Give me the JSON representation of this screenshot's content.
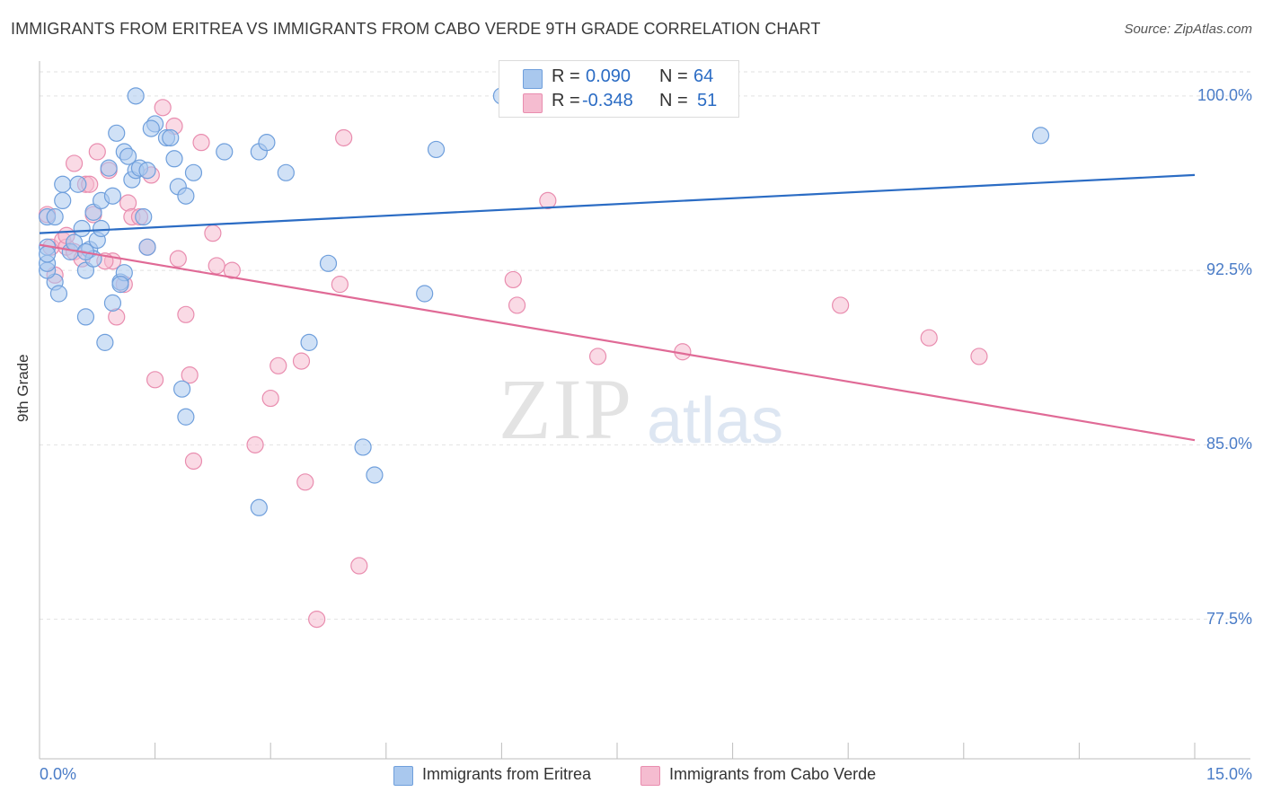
{
  "title": "IMMIGRANTS FROM ERITREA VS IMMIGRANTS FROM CABO VERDE 9TH GRADE CORRELATION CHART",
  "source": "Source: ZipAtlas.com",
  "watermark": {
    "zip": "ZIP",
    "atlas": "atlas"
  },
  "legend": {
    "r_label": "R =",
    "n_label": "N =",
    "series": [
      {
        "r": "0.090",
        "n": "64"
      },
      {
        "r": "-0.348",
        "n": "51"
      }
    ]
  },
  "bottom_legend": [
    "Immigrants from Eritrea",
    "Immigrants from Cabo Verde"
  ],
  "colors": {
    "blue_fill": "#a9c8ee",
    "blue_stroke": "#6f9fdc",
    "blue_line": "#2b6cc4",
    "pink_fill": "#f5bcd0",
    "pink_stroke": "#e98daf",
    "pink_line": "#e06a96",
    "tick_text": "#4a7cc7"
  },
  "chart_data": {
    "type": "scatter",
    "ylabel": "9th Grade",
    "xlim": [
      0.0,
      15.0
    ],
    "ylim": [
      71.5,
      101.5
    ],
    "x_tick_labels": [
      "0.0%",
      "15.0%"
    ],
    "y_ticks": [
      100.0,
      92.5,
      85.0,
      77.5
    ],
    "y_tick_labels": [
      "100.0%",
      "92.5%",
      "85.0%",
      "77.5%"
    ],
    "grid": true,
    "series": [
      {
        "name": "Immigrants from Eritrea",
        "trend": [
          [
            0.0,
            94.1
          ],
          [
            15.0,
            96.6
          ]
        ],
        "points": [
          [
            0.1,
            94.8
          ],
          [
            0.2,
            94.8
          ],
          [
            0.1,
            93.5
          ],
          [
            0.3,
            95.5
          ],
          [
            0.3,
            96.2
          ],
          [
            0.2,
            92.0
          ],
          [
            0.1,
            92.5
          ],
          [
            0.1,
            92.8
          ],
          [
            0.25,
            91.5
          ],
          [
            0.4,
            93.3
          ],
          [
            0.45,
            93.7
          ],
          [
            0.5,
            96.2
          ],
          [
            0.55,
            94.3
          ],
          [
            0.6,
            92.5
          ],
          [
            0.6,
            90.5
          ],
          [
            0.65,
            93.4
          ],
          [
            0.7,
            95.0
          ],
          [
            0.7,
            93.0
          ],
          [
            0.75,
            93.8
          ],
          [
            0.8,
            95.5
          ],
          [
            0.8,
            94.3
          ],
          [
            0.85,
            89.4
          ],
          [
            0.9,
            96.9
          ],
          [
            0.95,
            95.7
          ],
          [
            0.95,
            91.1
          ],
          [
            1.0,
            98.4
          ],
          [
            1.05,
            92.0
          ],
          [
            1.1,
            92.4
          ],
          [
            1.1,
            97.6
          ],
          [
            1.15,
            97.4
          ],
          [
            1.2,
            96.4
          ],
          [
            1.25,
            96.8
          ],
          [
            1.3,
            96.9
          ],
          [
            1.35,
            94.8
          ],
          [
            1.4,
            96.8
          ],
          [
            1.5,
            98.8
          ],
          [
            1.25,
            100.0
          ],
          [
            1.45,
            98.6
          ],
          [
            1.65,
            98.2
          ],
          [
            1.7,
            98.2
          ],
          [
            1.75,
            97.3
          ],
          [
            1.8,
            96.1
          ],
          [
            1.9,
            95.7
          ],
          [
            1.9,
            86.2
          ],
          [
            1.85,
            87.4
          ],
          [
            2.0,
            96.7
          ],
          [
            2.4,
            97.6
          ],
          [
            2.85,
            97.6
          ],
          [
            2.95,
            98.0
          ],
          [
            3.2,
            96.7
          ],
          [
            3.5,
            89.4
          ],
          [
            3.75,
            92.8
          ],
          [
            4.2,
            84.9
          ],
          [
            4.35,
            83.7
          ],
          [
            2.85,
            82.3
          ],
          [
            5.0,
            91.5
          ],
          [
            5.15,
            97.7
          ],
          [
            6.0,
            100.0
          ],
          [
            6.3,
            99.8
          ],
          [
            13.0,
            98.3
          ],
          [
            0.1,
            93.2
          ],
          [
            1.4,
            93.5
          ],
          [
            0.6,
            93.3
          ],
          [
            1.05,
            91.9
          ]
        ]
      },
      {
        "name": "Immigrants from Cabo Verde",
        "trend": [
          [
            0.0,
            93.6
          ],
          [
            15.0,
            85.2
          ]
        ],
        "points": [
          [
            0.1,
            94.9
          ],
          [
            0.15,
            93.5
          ],
          [
            0.2,
            92.3
          ],
          [
            0.3,
            93.8
          ],
          [
            0.35,
            93.5
          ],
          [
            0.45,
            93.3
          ],
          [
            0.45,
            97.1
          ],
          [
            0.55,
            93.0
          ],
          [
            0.6,
            96.2
          ],
          [
            0.65,
            96.2
          ],
          [
            0.7,
            94.9
          ],
          [
            0.75,
            97.6
          ],
          [
            0.9,
            96.8
          ],
          [
            0.95,
            92.9
          ],
          [
            1.0,
            90.5
          ],
          [
            1.1,
            91.9
          ],
          [
            1.15,
            95.4
          ],
          [
            1.2,
            94.8
          ],
          [
            1.3,
            94.8
          ],
          [
            1.4,
            93.5
          ],
          [
            1.45,
            96.6
          ],
          [
            1.5,
            87.8
          ],
          [
            1.6,
            99.5
          ],
          [
            1.75,
            98.7
          ],
          [
            1.8,
            93.0
          ],
          [
            1.9,
            90.6
          ],
          [
            1.95,
            88.0
          ],
          [
            2.0,
            84.3
          ],
          [
            2.1,
            98.0
          ],
          [
            2.25,
            94.1
          ],
          [
            2.3,
            92.7
          ],
          [
            2.5,
            92.5
          ],
          [
            2.8,
            85.0
          ],
          [
            3.0,
            87.0
          ],
          [
            3.1,
            88.4
          ],
          [
            3.4,
            88.6
          ],
          [
            3.45,
            83.4
          ],
          [
            3.6,
            77.5
          ],
          [
            3.9,
            91.9
          ],
          [
            3.95,
            98.2
          ],
          [
            4.15,
            79.8
          ],
          [
            6.15,
            92.1
          ],
          [
            6.2,
            91.0
          ],
          [
            6.6,
            95.5
          ],
          [
            7.25,
            88.8
          ],
          [
            8.35,
            89.0
          ],
          [
            10.4,
            91.0
          ],
          [
            11.55,
            89.6
          ],
          [
            12.2,
            88.8
          ],
          [
            0.35,
            94.0
          ],
          [
            0.85,
            92.9
          ]
        ]
      }
    ]
  }
}
